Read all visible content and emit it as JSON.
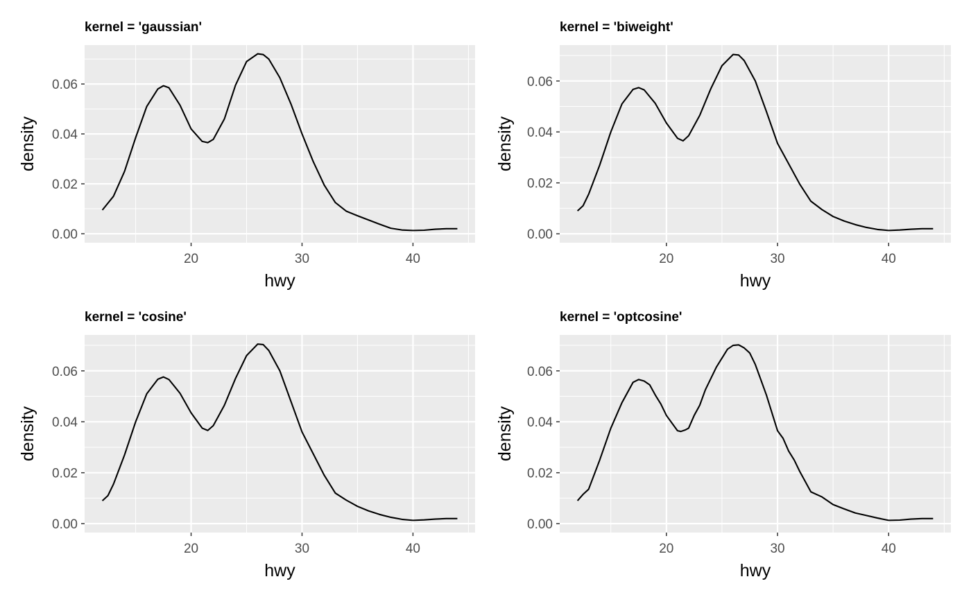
{
  "chart_data": [
    {
      "type": "line",
      "title": "kernel = 'gaussian'",
      "xlabel": "hwy",
      "ylabel": "density",
      "xlim": [
        10.4,
        45.6
      ],
      "ylim": [
        -0.0036,
        0.0756
      ],
      "x_ticks": [
        20,
        30,
        40
      ],
      "x_tick_labels": [
        "20",
        "30",
        "40"
      ],
      "y_ticks": [
        0,
        0.02,
        0.04,
        0.06
      ],
      "y_tick_labels": [
        "0.00",
        "0.02",
        "0.04",
        "0.06"
      ],
      "grid": true,
      "series": [
        {
          "x": [
            12,
            13,
            14,
            15,
            16,
            17,
            17.5,
            18,
            19,
            20,
            21,
            21.5,
            22,
            23,
            24,
            25,
            26,
            26.5,
            27,
            28,
            29,
            30,
            31,
            32,
            33,
            34,
            35,
            36,
            37,
            38,
            39,
            40,
            41,
            42,
            43,
            44
          ],
          "y": [
            0.0095,
            0.015,
            0.025,
            0.0385,
            0.051,
            0.058,
            0.0593,
            0.0585,
            0.0515,
            0.042,
            0.037,
            0.0365,
            0.0378,
            0.046,
            0.0595,
            0.069,
            0.0721,
            0.0718,
            0.07,
            0.0625,
            0.052,
            0.04,
            0.029,
            0.0195,
            0.0125,
            0.009,
            0.0072,
            0.0055,
            0.0038,
            0.0022,
            0.0015,
            0.0013,
            0.0014,
            0.0018,
            0.002,
            0.002
          ]
        }
      ]
    },
    {
      "type": "line",
      "title": "kernel = 'biweight'",
      "xlabel": "hwy",
      "ylabel": "density",
      "xlim": [
        10.4,
        45.6
      ],
      "ylim": [
        -0.0035,
        0.0741
      ],
      "x_ticks": [
        20,
        30,
        40
      ],
      "x_tick_labels": [
        "20",
        "30",
        "40"
      ],
      "y_ticks": [
        0,
        0.02,
        0.04,
        0.06
      ],
      "y_tick_labels": [
        "0.00",
        "0.02",
        "0.04",
        "0.06"
      ],
      "grid": true,
      "series": [
        {
          "x": [
            12,
            12.5,
            13,
            14,
            15,
            16,
            17,
            17.5,
            18,
            19,
            20,
            21,
            21.5,
            22,
            23,
            24,
            25,
            26,
            26.5,
            27,
            28,
            29,
            30,
            31,
            32,
            33,
            34,
            35,
            36,
            37,
            38,
            39,
            40,
            41,
            42,
            43,
            44
          ],
          "y": [
            0.009,
            0.011,
            0.0155,
            0.027,
            0.04,
            0.051,
            0.0567,
            0.0574,
            0.0565,
            0.0512,
            0.0435,
            0.0375,
            0.0365,
            0.0385,
            0.0465,
            0.057,
            0.066,
            0.0704,
            0.0702,
            0.068,
            0.06,
            0.048,
            0.0355,
            0.0275,
            0.0195,
            0.0128,
            0.0095,
            0.0068,
            0.005,
            0.0036,
            0.0025,
            0.0017,
            0.0013,
            0.0015,
            0.0018,
            0.002,
            0.002
          ]
        }
      ]
    },
    {
      "type": "line",
      "title": "kernel = 'cosine'",
      "xlabel": "hwy",
      "ylabel": "density",
      "xlim": [
        10.4,
        45.6
      ],
      "ylim": [
        -0.0035,
        0.0741
      ],
      "x_ticks": [
        20,
        30,
        40
      ],
      "x_tick_labels": [
        "20",
        "30",
        "40"
      ],
      "y_ticks": [
        0,
        0.02,
        0.04,
        0.06
      ],
      "y_tick_labels": [
        "0.00",
        "0.02",
        "0.04",
        "0.06"
      ],
      "grid": true,
      "series": [
        {
          "x": [
            12,
            12.5,
            13,
            14,
            15,
            16,
            17,
            17.5,
            18,
            19,
            20,
            21,
            21.5,
            22,
            23,
            24,
            25,
            26,
            26.5,
            27,
            28,
            29,
            30,
            31,
            32,
            33,
            34,
            35,
            36,
            37,
            38,
            39,
            40,
            41,
            42,
            43,
            44
          ],
          "y": [
            0.009,
            0.011,
            0.0155,
            0.027,
            0.04,
            0.051,
            0.0567,
            0.0576,
            0.0566,
            0.0512,
            0.0435,
            0.0375,
            0.0366,
            0.0385,
            0.0465,
            0.057,
            0.066,
            0.0705,
            0.0703,
            0.068,
            0.06,
            0.048,
            0.036,
            0.0275,
            0.019,
            0.012,
            0.0092,
            0.0068,
            0.005,
            0.0036,
            0.0025,
            0.0017,
            0.0013,
            0.0015,
            0.0018,
            0.002,
            0.002
          ]
        }
      ]
    },
    {
      "type": "line",
      "title": "kernel = 'optcosine'",
      "xlabel": "hwy",
      "ylabel": "density",
      "xlim": [
        10.4,
        45.6
      ],
      "ylim": [
        -0.0035,
        0.0741
      ],
      "x_ticks": [
        20,
        30,
        40
      ],
      "x_tick_labels": [
        "20",
        "30",
        "40"
      ],
      "y_ticks": [
        0,
        0.02,
        0.04,
        0.06
      ],
      "y_tick_labels": [
        "0.00",
        "0.02",
        "0.04",
        "0.06"
      ],
      "grid": true,
      "series": [
        {
          "x": [
            12,
            12.5,
            13,
            14,
            15,
            16,
            17,
            17.5,
            18,
            18.5,
            19,
            19.5,
            20,
            20.5,
            21,
            21.3,
            21.7,
            22,
            22.5,
            23,
            23.5,
            24,
            24.5,
            25,
            25.5,
            26,
            26.5,
            27,
            27.5,
            28,
            28.5,
            29,
            29.5,
            30,
            30.5,
            31,
            31.5,
            32,
            32.5,
            33,
            33.5,
            34,
            34.5,
            35,
            36,
            37,
            38,
            39,
            40,
            41,
            42,
            43,
            44
          ],
          "y": [
            0.009,
            0.0115,
            0.0135,
            0.025,
            0.0375,
            0.0475,
            0.0555,
            0.0566,
            0.056,
            0.0545,
            0.0505,
            0.047,
            0.0425,
            0.0395,
            0.0365,
            0.0362,
            0.0368,
            0.0375,
            0.0425,
            0.0465,
            0.0525,
            0.057,
            0.0615,
            0.065,
            0.0685,
            0.07,
            0.0702,
            0.069,
            0.067,
            0.0625,
            0.0565,
            0.0505,
            0.0435,
            0.0365,
            0.0335,
            0.0285,
            0.025,
            0.0205,
            0.0165,
            0.0125,
            0.0115,
            0.0105,
            0.009,
            0.0075,
            0.0058,
            0.0042,
            0.0032,
            0.0022,
            0.0013,
            0.0014,
            0.0018,
            0.002,
            0.002
          ]
        }
      ]
    }
  ]
}
